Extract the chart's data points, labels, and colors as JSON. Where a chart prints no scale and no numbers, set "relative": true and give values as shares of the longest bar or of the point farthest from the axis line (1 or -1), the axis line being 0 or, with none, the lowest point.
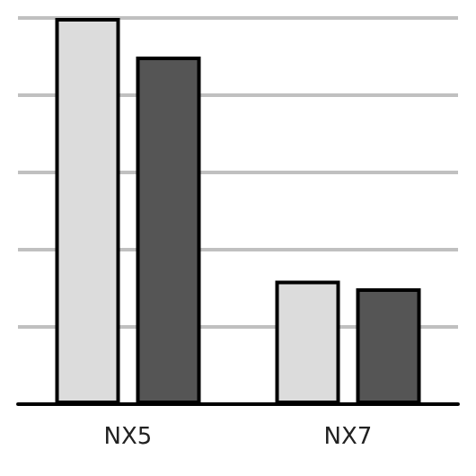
{
  "chart_data": {
    "type": "bar",
    "relative": true,
    "categories": [
      "NX5",
      "NX7"
    ],
    "series": [
      {
        "color": "#dcdcdc",
        "values": [
          1,
          0.32
        ]
      },
      {
        "color": "#555555",
        "values": [
          0.9,
          0.3
        ]
      }
    ],
    "grid": "y"
  }
}
